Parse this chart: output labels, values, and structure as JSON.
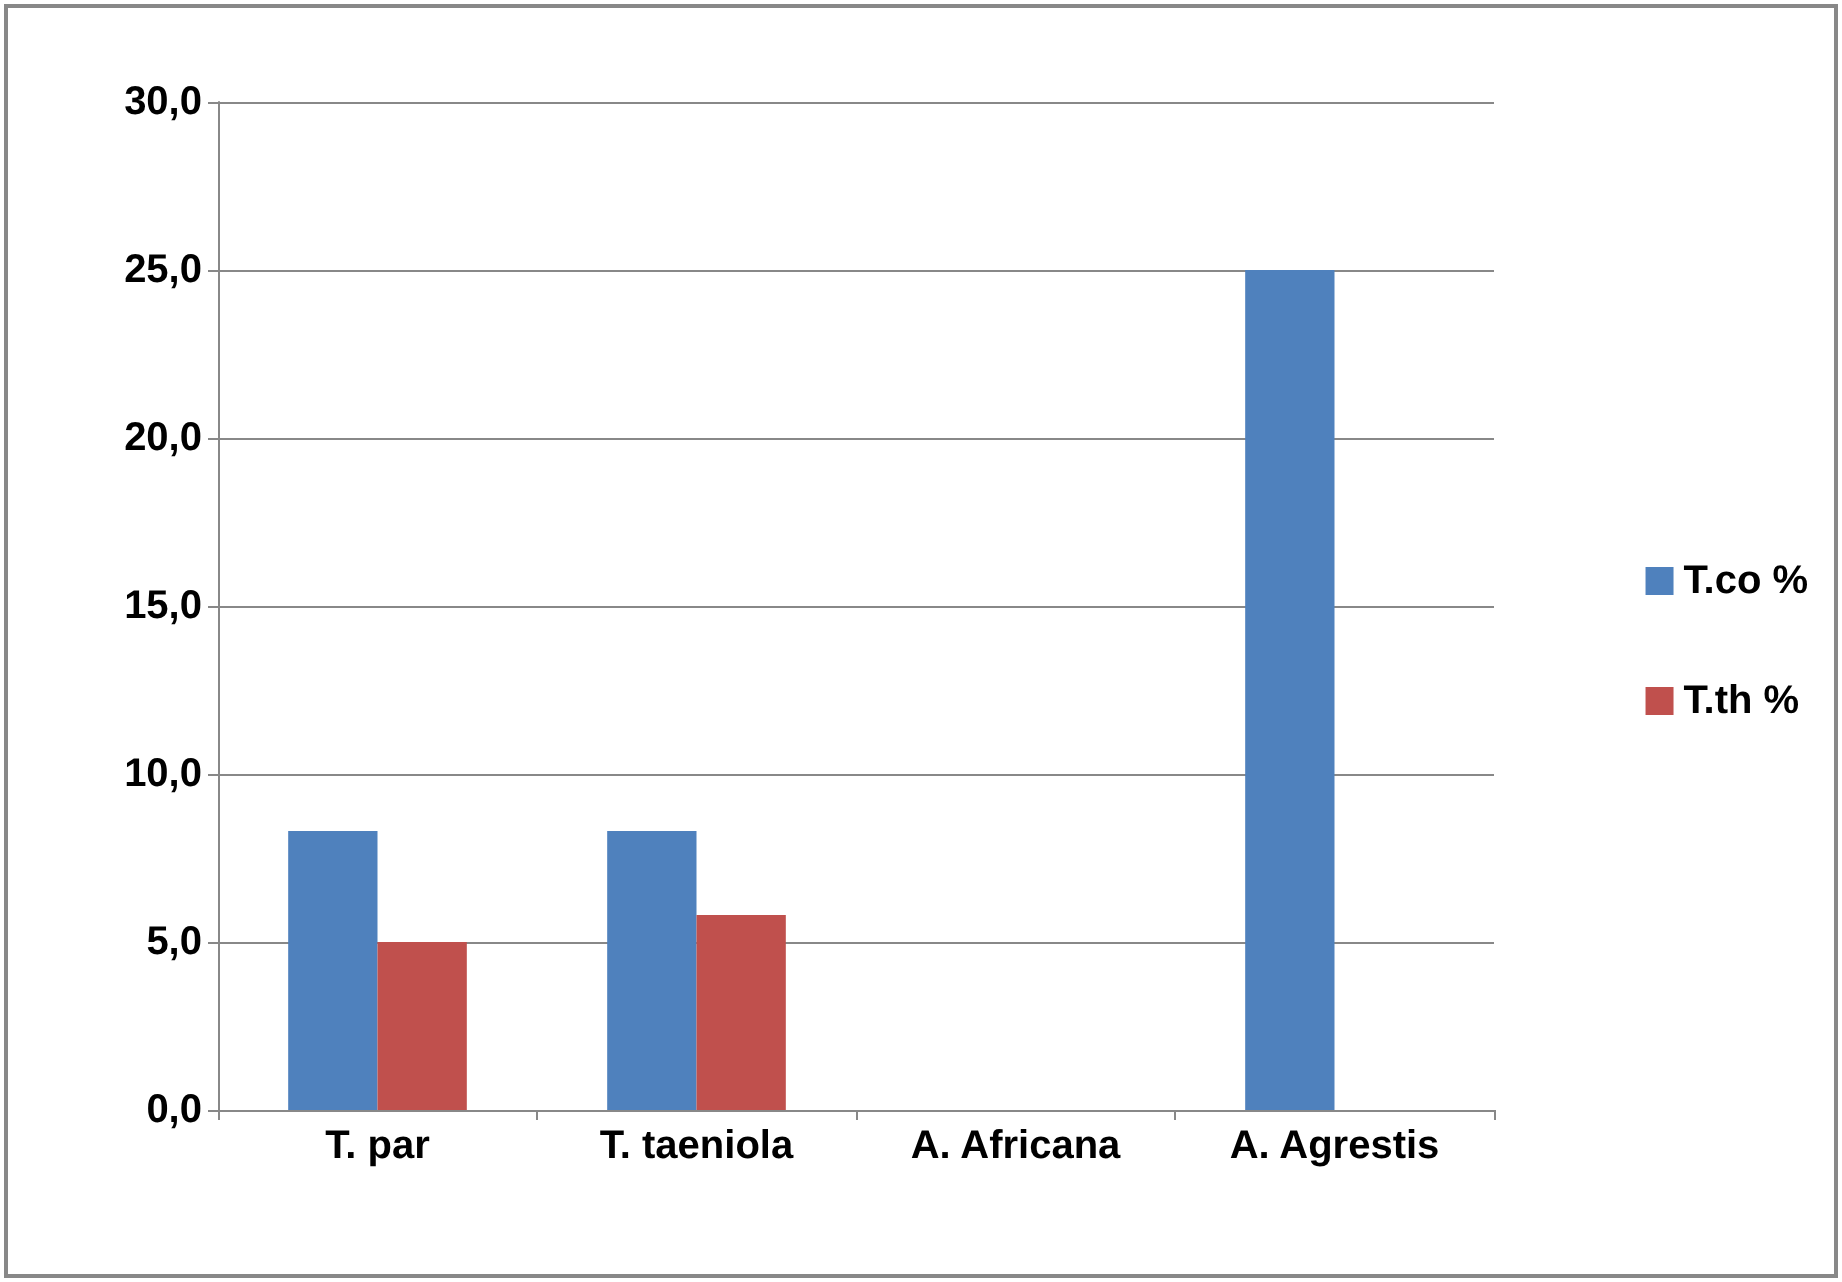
{
  "chart_data": {
    "type": "bar",
    "categories": [
      "T. par",
      "T. taeniola",
      "A. Africana",
      "A. Agrestis"
    ],
    "series": [
      {
        "name": "T.co %",
        "color": "#4f81bd",
        "values": [
          8.3,
          8.3,
          0,
          25
        ]
      },
      {
        "name": "T.th %",
        "color": "#c0504d",
        "values": [
          5.0,
          5.8,
          0,
          0
        ]
      }
    ],
    "ylim": [
      0,
      30
    ],
    "yticks": [
      {
        "value": 0,
        "label": "0,0"
      },
      {
        "value": 5,
        "label": "5,0"
      },
      {
        "value": 10,
        "label": "10,0"
      },
      {
        "value": 15,
        "label": "15,0"
      },
      {
        "value": 20,
        "label": "20,0"
      },
      {
        "value": 25,
        "label": "25,0"
      },
      {
        "value": 30,
        "label": "30,0"
      }
    ],
    "grid": "y",
    "legend": "right"
  }
}
